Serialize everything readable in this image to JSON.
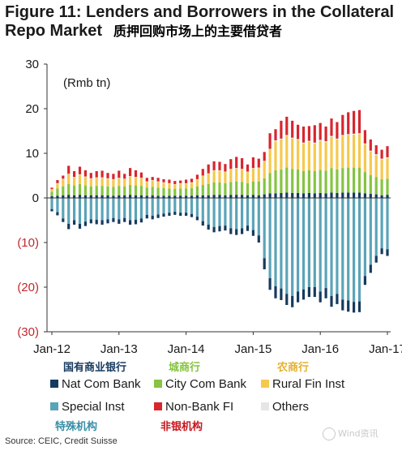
{
  "figure": {
    "title_line1": "Figure 11: Lenders and Borrowers in the Collateral",
    "title_line2": "Repo Market",
    "title_cn": "质押回购市场上的主要借贷者",
    "source": "Source: CEIC, Credit Suisse",
    "watermark": "Wind资讯"
  },
  "legend_cn": {
    "nat_com_bank": "国有商业银行",
    "city_com_bank": "城商行",
    "rural_fin_inst": "农商行",
    "special_inst": "特殊机构",
    "non_bank_fi": "非银机构"
  },
  "colors": {
    "Nat Com Bank": "#163a5f",
    "City Com Bank": "#86c441",
    "Rural Fin Inst": "#f6c84d",
    "Special Inst": "#5ba4b8",
    "Non-Bank FI": "#d7262e",
    "Others": "#e6e6e6",
    "cn_nat": "#163a5f",
    "cn_city": "#86c441",
    "cn_rural": "#e5b12e",
    "cn_special": "#3a8fa7",
    "cn_nonbank": "#c8161d",
    "neg_tick": "#c0282d"
  },
  "chart_data": {
    "type": "bar",
    "stacked": true,
    "unit_label": "(Rmb tn)",
    "ylim": [
      -30,
      30
    ],
    "yticks": [
      30,
      20,
      10,
      0,
      -10,
      -20,
      -30
    ],
    "ytick_labels": [
      "30",
      "20",
      "10",
      "0",
      "(10)",
      "(20)",
      "(30)"
    ],
    "xtick_labels": [
      "Jan-12",
      "Jan-13",
      "Jan-14",
      "Jan-15",
      "Jan-16",
      "Jan-17"
    ],
    "categories": [
      "Jan-12",
      "Feb-12",
      "Mar-12",
      "Apr-12",
      "May-12",
      "Jun-12",
      "Jul-12",
      "Aug-12",
      "Sep-12",
      "Oct-12",
      "Nov-12",
      "Dec-12",
      "Jan-13",
      "Feb-13",
      "Mar-13",
      "Apr-13",
      "May-13",
      "Jun-13",
      "Jul-13",
      "Aug-13",
      "Sep-13",
      "Oct-13",
      "Nov-13",
      "Dec-13",
      "Jan-14",
      "Feb-14",
      "Mar-14",
      "Apr-14",
      "May-14",
      "Jun-14",
      "Jul-14",
      "Aug-14",
      "Sep-14",
      "Oct-14",
      "Nov-14",
      "Dec-14",
      "Jan-15",
      "Feb-15",
      "Mar-15",
      "Apr-15",
      "May-15",
      "Jun-15",
      "Jul-15",
      "Aug-15",
      "Sep-15",
      "Oct-15",
      "Nov-15",
      "Dec-15",
      "Jan-16",
      "Feb-16",
      "Mar-16",
      "Apr-16",
      "May-16",
      "Jun-16",
      "Jul-16",
      "Aug-16",
      "Sep-16",
      "Oct-16",
      "Nov-16",
      "Dec-16",
      "Jan-17"
    ],
    "legend": [
      "Nat Com Bank",
      "City Com Bank",
      "Rural Fin Inst",
      "Special Inst",
      "Non-Bank FI",
      "Others"
    ],
    "series_positive": [
      {
        "name": "Nat Com Bank",
        "values": [
          0.4,
          0.5,
          0.6,
          0.7,
          0.6,
          0.7,
          0.6,
          0.6,
          0.6,
          0.6,
          0.6,
          0.5,
          0.6,
          0.6,
          0.7,
          0.6,
          0.6,
          0.5,
          0.6,
          0.5,
          0.5,
          0.5,
          0.5,
          0.5,
          0.5,
          0.5,
          0.6,
          0.6,
          0.6,
          0.7,
          0.7,
          0.6,
          0.7,
          0.7,
          0.7,
          0.6,
          0.7,
          0.6,
          0.8,
          1.0,
          1.0,
          1.1,
          1.2,
          1.1,
          1.1,
          1.0,
          1.1,
          1.0,
          1.1,
          1.0,
          1.2,
          1.1,
          1.2,
          1.2,
          1.2,
          1.2,
          1.0,
          0.9,
          0.8,
          0.6,
          0.7
        ]
      },
      {
        "name": "City Com Bank",
        "values": [
          1.0,
          1.6,
          2.0,
          2.4,
          2.2,
          2.4,
          2.2,
          2.0,
          2.1,
          2.1,
          2.0,
          2.0,
          2.1,
          2.0,
          2.2,
          2.2,
          2.1,
          1.8,
          1.9,
          1.8,
          1.7,
          1.6,
          1.5,
          1.6,
          1.6,
          1.7,
          2.0,
          2.3,
          2.5,
          2.8,
          2.8,
          2.7,
          2.9,
          3.0,
          2.9,
          2.7,
          3.0,
          3.1,
          3.6,
          4.6,
          5.2,
          5.3,
          5.6,
          5.4,
          5.3,
          5.0,
          5.1,
          5.0,
          5.2,
          5.1,
          5.5,
          5.3,
          5.5,
          5.6,
          5.6,
          5.6,
          4.8,
          4.2,
          3.9,
          3.6,
          3.6
        ]
      },
      {
        "name": "Rural Fin Inst",
        "values": [
          0.6,
          1.1,
          1.6,
          2.2,
          1.8,
          2.1,
          1.9,
          1.7,
          1.8,
          1.8,
          1.7,
          1.6,
          1.7,
          1.6,
          1.9,
          1.8,
          1.7,
          1.3,
          1.4,
          1.3,
          1.2,
          1.1,
          1.0,
          1.1,
          1.1,
          1.2,
          1.5,
          2.0,
          2.3,
          2.6,
          2.6,
          2.5,
          2.8,
          2.9,
          2.8,
          2.5,
          2.9,
          3.0,
          3.8,
          5.3,
          6.5,
          6.7,
          7.1,
          6.8,
          6.6,
          6.2,
          6.4,
          6.2,
          6.5,
          6.4,
          7.0,
          6.7,
          7.2,
          7.3,
          7.4,
          7.5,
          6.2,
          5.3,
          4.9,
          4.4,
          4.6
        ]
      },
      {
        "name": "Others",
        "values": [
          0.0,
          0.1,
          0.1,
          0.1,
          0.1,
          0.1,
          0.1,
          0.1,
          0.1,
          0.1,
          0.1,
          0.1,
          0.1,
          0.1,
          0.1,
          0.1,
          0.1,
          0.1,
          0.1,
          0.1,
          0.1,
          0.1,
          0.1,
          0.1,
          0.1,
          0.1,
          0.1,
          0.1,
          0.1,
          0.1,
          0.1,
          0.1,
          0.1,
          0.1,
          0.1,
          0.1,
          0.1,
          0.1,
          0.1,
          0.1,
          0.2,
          0.2,
          0.2,
          0.2,
          0.2,
          0.2,
          0.2,
          0.2,
          0.2,
          0.2,
          0.2,
          0.2,
          0.2,
          0.2,
          0.2,
          0.2,
          0.2,
          0.2,
          0.2,
          0.2,
          0.2
        ]
      },
      {
        "name": "Non-Bank FI",
        "values": [
          0.3,
          0.7,
          0.7,
          1.8,
          1.3,
          1.7,
          1.4,
          1.2,
          1.4,
          1.5,
          1.2,
          1.2,
          1.6,
          1.1,
          1.8,
          1.5,
          1.2,
          0.8,
          0.7,
          0.8,
          0.7,
          0.8,
          0.7,
          0.6,
          0.8,
          0.8,
          1.0,
          1.5,
          2.0,
          2.0,
          1.9,
          1.7,
          2.2,
          2.5,
          2.4,
          1.6,
          2.4,
          2.0,
          2.0,
          3.5,
          2.5,
          4.0,
          4.1,
          3.8,
          3.2,
          3.6,
          3.3,
          3.9,
          3.8,
          3.3,
          3.9,
          3.7,
          4.5,
          4.9,
          5.1,
          5.2,
          3.0,
          2.5,
          2.0,
          2.0,
          2.5
        ]
      }
    ],
    "series_negative": [
      {
        "name": "Special Inst",
        "values": [
          -2.5,
          -3.2,
          -4.6,
          -5.8,
          -5.0,
          -5.8,
          -5.3,
          -4.8,
          -4.9,
          -5.0,
          -4.8,
          -4.5,
          -4.8,
          -4.5,
          -5.0,
          -4.9,
          -4.6,
          -3.8,
          -4.0,
          -3.7,
          -3.5,
          -3.3,
          -3.1,
          -3.3,
          -3.3,
          -3.6,
          -4.2,
          -5.2,
          -6.0,
          -6.5,
          -6.3,
          -6.2,
          -6.8,
          -7.0,
          -6.8,
          -6.2,
          -7.2,
          -8.4,
          -13.5,
          -18.0,
          -19.8,
          -20.3,
          -21.5,
          -22.0,
          -21.0,
          -20.5,
          -20.0,
          -20.0,
          -21.0,
          -20.2,
          -22.0,
          -21.5,
          -22.8,
          -23.0,
          -23.3,
          -23.2,
          -17.5,
          -15.0,
          -13.0,
          -11.3,
          -11.5
        ]
      },
      {
        "name": "Nat Com Bank",
        "values": [
          -0.5,
          -0.7,
          -0.8,
          -1.2,
          -1.0,
          -1.1,
          -1.0,
          -0.9,
          -1.0,
          -1.0,
          -0.9,
          -0.9,
          -1.0,
          -0.9,
          -1.0,
          -1.0,
          -0.9,
          -0.8,
          -0.8,
          -0.8,
          -0.7,
          -0.7,
          -0.7,
          -0.7,
          -0.7,
          -0.7,
          -0.8,
          -1.0,
          -1.1,
          -1.2,
          -1.2,
          -1.1,
          -1.3,
          -1.3,
          -1.3,
          -1.2,
          -1.3,
          -1.6,
          -2.5,
          -2.6,
          -2.7,
          -2.6,
          -2.5,
          -2.5,
          -2.4,
          -2.3,
          -2.2,
          -2.2,
          -2.4,
          -2.3,
          -2.4,
          -2.3,
          -2.4,
          -2.5,
          -2.4,
          -2.4,
          -2.0,
          -1.8,
          -1.5,
          -1.3,
          -1.5
        ]
      }
    ]
  }
}
